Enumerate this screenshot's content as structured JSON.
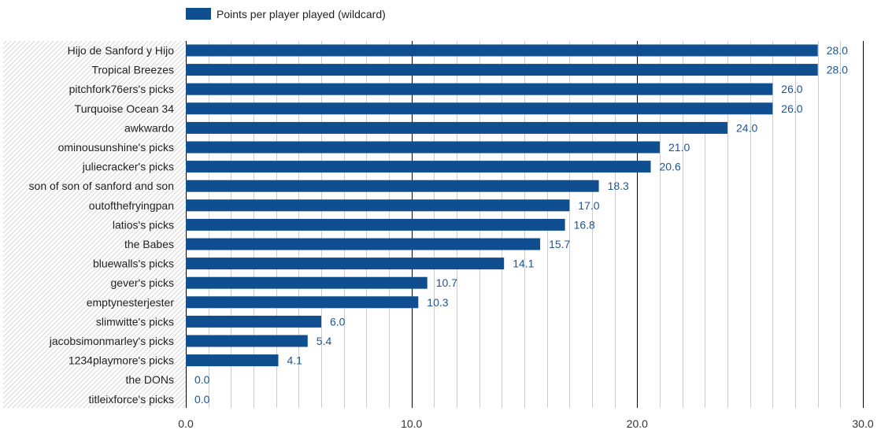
{
  "chart_data": {
    "type": "bar",
    "orientation": "horizontal",
    "legend": {
      "label": "Points per player played (wildcard)",
      "position": "top"
    },
    "categories": [
      "Hijo de Sanford y Hijo",
      "Tropical Breezes",
      "pitchfork76ers's picks",
      "Turquoise Ocean 34",
      "awkwardo",
      "ominousunshine's picks",
      "juliecracker's picks",
      "son of son of sanford and son",
      "outofthefryingpan",
      "latios's picks",
      "the Babes",
      "bluewalls's picks",
      "gever's picks",
      "emptynesterjester",
      "slimwitte's picks",
      "jacobsimonmarley's picks",
      "1234playmore's picks",
      "the DONs",
      "titleixforce's picks"
    ],
    "series": [
      {
        "name": "Points per player played (wildcard)",
        "values": [
          28.0,
          28.0,
          26.0,
          26.0,
          24.0,
          21.0,
          20.6,
          18.3,
          17.0,
          16.8,
          15.7,
          14.1,
          10.7,
          10.3,
          6.0,
          5.4,
          4.1,
          0.0,
          0.0
        ],
        "value_labels": [
          "28.0",
          "28.0",
          "26.0",
          "26.0",
          "24.0",
          "21.0",
          "20.6",
          "18.3",
          "17.0",
          "16.8",
          "15.7",
          "14.1",
          "10.7",
          "10.3",
          "6.0",
          "5.4",
          "4.1",
          "0.0",
          "0.0"
        ]
      }
    ],
    "xlim": [
      0,
      30
    ],
    "major_ticks": [
      0,
      10,
      20,
      30
    ],
    "tick_labels": [
      "0.0",
      "10.0",
      "20.0",
      "30.0"
    ],
    "minor_tick_step": 1,
    "grid": true,
    "colors": {
      "bar": "#0f4e8f",
      "value_label": "#1c5594",
      "category_text": "#222222",
      "tick_text": "#333333",
      "major_grid": "#000000",
      "minor_grid": "#cccccc",
      "label_hatch": "#d8d8d8"
    }
  }
}
